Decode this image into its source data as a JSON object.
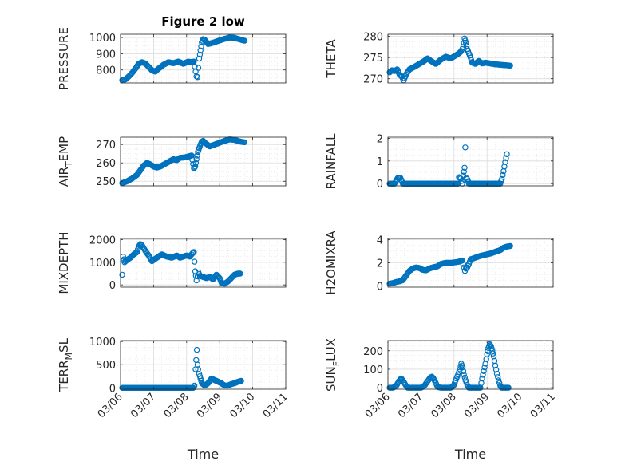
{
  "chart_data": [
    {
      "type": "scatter",
      "title": "Figure 2 low",
      "ylabel": "PRESSURE",
      "ylabel_sub": "",
      "ylabel_tail": "",
      "ylim": [
        720,
        1020
      ],
      "yticks": [
        800,
        900,
        1000
      ],
      "xlim": [
        0,
        5
      ],
      "xticks": [
        0,
        1,
        2,
        3,
        4,
        5
      ],
      "xticklabels": [
        "03/06",
        "03/07",
        "03/08",
        "03/09",
        "03/10",
        "03/11"
      ],
      "xlabel": "",
      "curve": [
        [
          0.05,
          737
        ],
        [
          0.15,
          742
        ],
        [
          0.25,
          760
        ],
        [
          0.35,
          782
        ],
        [
          0.45,
          808
        ],
        [
          0.55,
          838
        ],
        [
          0.65,
          848
        ],
        [
          0.75,
          840
        ],
        [
          0.85,
          820
        ],
        [
          0.95,
          798
        ],
        [
          1.05,
          790
        ],
        [
          1.15,
          808
        ],
        [
          1.3,
          832
        ],
        [
          1.45,
          848
        ],
        [
          1.6,
          842
        ],
        [
          1.75,
          852
        ],
        [
          1.9,
          838
        ],
        [
          2.05,
          852
        ],
        [
          2.15,
          848
        ],
        [
          2.22,
          852
        ],
        [
          2.3,
          760
        ],
        [
          2.33,
          756
        ],
        [
          2.38,
          870
        ],
        [
          2.42,
          920
        ],
        [
          2.46,
          970
        ],
        [
          2.5,
          990
        ],
        [
          2.55,
          985
        ],
        [
          2.65,
          960
        ],
        [
          2.8,
          968
        ],
        [
          3.0,
          982
        ],
        [
          3.15,
          992
        ],
        [
          3.3,
          1000
        ],
        [
          3.45,
          998
        ],
        [
          3.55,
          992
        ],
        [
          3.65,
          986
        ],
        [
          3.75,
          980
        ]
      ]
    },
    {
      "type": "scatter",
      "title": "",
      "ylabel": "THETA",
      "ylabel_sub": "",
      "ylabel_tail": "",
      "ylim": [
        269,
        280.5
      ],
      "yticks": [
        270,
        275,
        280
      ],
      "xlim": [
        0,
        5
      ],
      "xticks": [
        0,
        1,
        2,
        3,
        4,
        5
      ],
      "xticklabels": [
        "03/06",
        "03/07",
        "03/08",
        "03/09",
        "03/10",
        "03/11"
      ],
      "xlabel": "",
      "curve": [
        [
          0.05,
          271.5
        ],
        [
          0.12,
          272
        ],
        [
          0.2,
          271.8
        ],
        [
          0.28,
          272.2
        ],
        [
          0.35,
          271
        ],
        [
          0.42,
          270.5
        ],
        [
          0.48,
          269.6
        ],
        [
          0.55,
          271
        ],
        [
          0.65,
          272.2
        ],
        [
          0.8,
          272.8
        ],
        [
          0.95,
          273.5
        ],
        [
          1.1,
          274.2
        ],
        [
          1.2,
          274.8
        ],
        [
          1.3,
          274.2
        ],
        [
          1.45,
          273.5
        ],
        [
          1.6,
          274.5
        ],
        [
          1.75,
          275.2
        ],
        [
          1.9,
          274.8
        ],
        [
          2.05,
          275.5
        ],
        [
          2.15,
          276
        ],
        [
          2.22,
          276.5
        ],
        [
          2.28,
          277.5
        ],
        [
          2.32,
          279.5
        ],
        [
          2.36,
          278.5
        ],
        [
          2.4,
          277
        ],
        [
          2.45,
          276
        ],
        [
          2.5,
          275
        ],
        [
          2.55,
          273.8
        ],
        [
          2.65,
          273.5
        ],
        [
          2.75,
          274.2
        ],
        [
          2.85,
          273.6
        ],
        [
          2.95,
          273.8
        ],
        [
          3.1,
          273.6
        ],
        [
          3.25,
          273.4
        ],
        [
          3.4,
          273.3
        ],
        [
          3.55,
          273.2
        ],
        [
          3.7,
          273.1
        ]
      ]
    },
    {
      "type": "scatter",
      "title": "",
      "ylabel": "AIR",
      "ylabel_sub": "T",
      "ylabel_tail": "EMP",
      "ylim": [
        247.5,
        274
      ],
      "yticks": [
        250,
        260,
        270
      ],
      "xlim": [
        0,
        5
      ],
      "xticks": [
        0,
        1,
        2,
        3,
        4,
        5
      ],
      "xticklabels": [
        "03/06",
        "03/07",
        "03/08",
        "03/09",
        "03/10",
        "03/11"
      ],
      "xlabel": "",
      "curve": [
        [
          0.05,
          249
        ],
        [
          0.2,
          250
        ],
        [
          0.35,
          251.5
        ],
        [
          0.5,
          253.5
        ],
        [
          0.6,
          256
        ],
        [
          0.7,
          258.5
        ],
        [
          0.8,
          260
        ],
        [
          0.9,
          259.2
        ],
        [
          1.0,
          258
        ],
        [
          1.1,
          257.5
        ],
        [
          1.2,
          258
        ],
        [
          1.35,
          259.5
        ],
        [
          1.5,
          261
        ],
        [
          1.6,
          262
        ],
        [
          1.7,
          261.5
        ],
        [
          1.8,
          262.8
        ],
        [
          1.95,
          263
        ],
        [
          2.05,
          263.5
        ],
        [
          2.15,
          264
        ],
        [
          2.22,
          257
        ],
        [
          2.26,
          258
        ],
        [
          2.3,
          262
        ],
        [
          2.34,
          266
        ],
        [
          2.38,
          268
        ],
        [
          2.42,
          270
        ],
        [
          2.46,
          271.5
        ],
        [
          2.5,
          272
        ],
        [
          2.55,
          271
        ],
        [
          2.7,
          269
        ],
        [
          2.85,
          270
        ],
        [
          3.0,
          271
        ],
        [
          3.15,
          272
        ],
        [
          3.3,
          272.8
        ],
        [
          3.45,
          272.5
        ],
        [
          3.55,
          272
        ],
        [
          3.65,
          271.5
        ],
        [
          3.75,
          271.2
        ]
      ]
    },
    {
      "type": "scatter",
      "title": "",
      "ylabel": "RAINFALL",
      "ylabel_sub": "",
      "ylabel_tail": "",
      "ylim": [
        -0.1,
        2.05
      ],
      "yticks": [
        0,
        1,
        2
      ],
      "xlim": [
        0,
        5
      ],
      "xticks": [
        0,
        1,
        2,
        3,
        4,
        5
      ],
      "xticklabels": [
        "03/06",
        "03/07",
        "03/08",
        "03/09",
        "03/10",
        "03/11"
      ],
      "xlabel": "",
      "curve": [
        [
          0.05,
          0
        ],
        [
          0.2,
          0
        ],
        [
          0.3,
          0.25
        ],
        [
          0.38,
          0.25
        ],
        [
          0.45,
          0
        ],
        [
          0.6,
          0
        ],
        [
          0.8,
          0
        ],
        [
          1.0,
          0
        ],
        [
          1.2,
          0
        ],
        [
          1.4,
          0
        ],
        [
          1.6,
          0
        ],
        [
          1.8,
          0
        ],
        [
          2.0,
          0
        ],
        [
          2.12,
          0
        ],
        [
          2.15,
          0.28
        ],
        [
          2.2,
          0.22
        ],
        [
          2.25,
          0
        ],
        [
          2.28,
          0.35
        ],
        [
          2.32,
          0.7
        ],
        [
          2.34,
          1.6
        ],
        [
          2.37,
          0.25
        ],
        [
          2.4,
          0.2
        ],
        [
          2.45,
          0
        ],
        [
          2.6,
          0
        ],
        [
          2.8,
          0
        ],
        [
          3.0,
          0
        ],
        [
          3.2,
          0
        ],
        [
          3.4,
          0
        ],
        [
          3.45,
          0.2
        ],
        [
          3.5,
          0.55
        ],
        [
          3.55,
          0.95
        ],
        [
          3.6,
          1.3
        ]
      ]
    },
    {
      "type": "scatter",
      "title": "",
      "ylabel": "MIXDEPTH",
      "ylabel_sub": "",
      "ylabel_tail": "",
      "ylim": [
        -100,
        2050
      ],
      "yticks": [
        0,
        1000,
        2000
      ],
      "xlim": [
        0,
        5
      ],
      "xticks": [
        0,
        1,
        2,
        3,
        4,
        5
      ],
      "xticklabels": [
        "03/06",
        "03/07",
        "03/08",
        "03/09",
        "03/10",
        "03/11"
      ],
      "xlabel": "",
      "curve": [
        [
          0.05,
          450
        ],
        [
          0.08,
          1250
        ],
        [
          0.12,
          1000
        ],
        [
          0.2,
          1100
        ],
        [
          0.3,
          1200
        ],
        [
          0.4,
          1350
        ],
        [
          0.5,
          1450
        ],
        [
          0.55,
          1700
        ],
        [
          0.6,
          1800
        ],
        [
          0.65,
          1750
        ],
        [
          0.75,
          1500
        ],
        [
          0.85,
          1300
        ],
        [
          0.95,
          1050
        ],
        [
          1.1,
          1200
        ],
        [
          1.25,
          1350
        ],
        [
          1.4,
          1250
        ],
        [
          1.55,
          1200
        ],
        [
          1.7,
          1300
        ],
        [
          1.8,
          1200
        ],
        [
          1.9,
          1250
        ],
        [
          2.0,
          1300
        ],
        [
          2.1,
          1250
        ],
        [
          2.18,
          1400
        ],
        [
          2.22,
          1450
        ],
        [
          2.26,
          600
        ],
        [
          2.28,
          400
        ],
        [
          2.3,
          200
        ],
        [
          2.36,
          550
        ],
        [
          2.4,
          400
        ],
        [
          2.5,
          350
        ],
        [
          2.6,
          300
        ],
        [
          2.7,
          350
        ],
        [
          2.8,
          250
        ],
        [
          2.9,
          450
        ],
        [
          3.0,
          300
        ],
        [
          3.05,
          100
        ],
        [
          3.15,
          50
        ],
        [
          3.25,
          150
        ],
        [
          3.35,
          300
        ],
        [
          3.45,
          450
        ],
        [
          3.55,
          500
        ],
        [
          3.62,
          500
        ]
      ]
    },
    {
      "type": "scatter",
      "title": "",
      "ylabel": "H2OMIXRA",
      "ylabel_sub": "",
      "ylabel_tail": "",
      "ylim": [
        -0.1,
        4.1
      ],
      "yticks": [
        0,
        2,
        4
      ],
      "xlim": [
        0,
        5
      ],
      "xticks": [
        0,
        1,
        2,
        3,
        4,
        5
      ],
      "xticklabels": [
        "03/06",
        "03/07",
        "03/08",
        "03/09",
        "03/10",
        "03/11"
      ],
      "xlabel": "",
      "curve": [
        [
          0.05,
          0.2
        ],
        [
          0.15,
          0.25
        ],
        [
          0.25,
          0.35
        ],
        [
          0.35,
          0.4
        ],
        [
          0.45,
          0.5
        ],
        [
          0.55,
          0.9
        ],
        [
          0.65,
          1.3
        ],
        [
          0.75,
          1.5
        ],
        [
          0.85,
          1.6
        ],
        [
          0.95,
          1.55
        ],
        [
          1.05,
          1.4
        ],
        [
          1.15,
          1.35
        ],
        [
          1.25,
          1.5
        ],
        [
          1.35,
          1.6
        ],
        [
          1.5,
          1.7
        ],
        [
          1.6,
          1.9
        ],
        [
          1.75,
          2.0
        ],
        [
          1.9,
          2.0
        ],
        [
          2.05,
          2.05
        ],
        [
          2.15,
          2.1
        ],
        [
          2.2,
          2.15
        ],
        [
          2.25,
          2.2
        ],
        [
          2.3,
          1.6
        ],
        [
          2.33,
          1.3
        ],
        [
          2.36,
          1.5
        ],
        [
          2.4,
          1.6
        ],
        [
          2.45,
          1.9
        ],
        [
          2.5,
          2.3
        ],
        [
          2.6,
          2.4
        ],
        [
          2.7,
          2.5
        ],
        [
          2.8,
          2.6
        ],
        [
          2.95,
          2.7
        ],
        [
          3.1,
          2.8
        ],
        [
          3.2,
          2.9
        ],
        [
          3.3,
          3.0
        ],
        [
          3.4,
          3.1
        ],
        [
          3.5,
          3.3
        ],
        [
          3.6,
          3.4
        ],
        [
          3.7,
          3.45
        ]
      ]
    },
    {
      "type": "scatter",
      "title": "",
      "ylabel": "TERR",
      "ylabel_sub": "M",
      "ylabel_tail": "SL",
      "ylim": [
        -30,
        1020
      ],
      "yticks": [
        0,
        500,
        1000
      ],
      "xlim": [
        0,
        5
      ],
      "xticks": [
        0,
        1,
        2,
        3,
        4,
        5
      ],
      "xticklabels": [
        "03/06",
        "03/07",
        "03/08",
        "03/09",
        "03/10",
        "03/11"
      ],
      "xlabel": "Time",
      "curve": [
        [
          0.05,
          0
        ],
        [
          0.3,
          0
        ],
        [
          0.6,
          0
        ],
        [
          0.9,
          0
        ],
        [
          1.2,
          0
        ],
        [
          1.5,
          0
        ],
        [
          1.8,
          0
        ],
        [
          2.1,
          0
        ],
        [
          2.2,
          0
        ],
        [
          2.24,
          50
        ],
        [
          2.27,
          400
        ],
        [
          2.29,
          600
        ],
        [
          2.31,
          820
        ],
        [
          2.33,
          500
        ],
        [
          2.35,
          400
        ],
        [
          2.38,
          300
        ],
        [
          2.42,
          200
        ],
        [
          2.46,
          100
        ],
        [
          2.55,
          50
        ],
        [
          2.65,
          100
        ],
        [
          2.75,
          200
        ],
        [
          2.9,
          150
        ],
        [
          3.05,
          100
        ],
        [
          3.15,
          50
        ],
        [
          3.25,
          50
        ],
        [
          3.35,
          80
        ],
        [
          3.45,
          100
        ],
        [
          3.55,
          130
        ],
        [
          3.65,
          150
        ]
      ]
    },
    {
      "type": "scatter",
      "title": "",
      "ylabel": "SUN",
      "ylabel_sub": "F",
      "ylabel_tail": "LUX",
      "ylim": [
        -8,
        255
      ],
      "yticks": [
        0,
        100,
        200
      ],
      "xlim": [
        0,
        5
      ],
      "xticks": [
        0,
        1,
        2,
        3,
        4,
        5
      ],
      "xticklabels": [
        "03/06",
        "03/07",
        "03/08",
        "03/09",
        "03/10",
        "03/11"
      ],
      "xlabel": "Time",
      "curve": [
        [
          0.05,
          0
        ],
        [
          0.15,
          0
        ],
        [
          0.25,
          10
        ],
        [
          0.3,
          25
        ],
        [
          0.35,
          40
        ],
        [
          0.4,
          50
        ],
        [
          0.45,
          40
        ],
        [
          0.5,
          25
        ],
        [
          0.55,
          10
        ],
        [
          0.6,
          0
        ],
        [
          0.8,
          0
        ],
        [
          1.0,
          0
        ],
        [
          1.1,
          10
        ],
        [
          1.2,
          35
        ],
        [
          1.28,
          55
        ],
        [
          1.33,
          60
        ],
        [
          1.38,
          50
        ],
        [
          1.45,
          25
        ],
        [
          1.5,
          5
        ],
        [
          1.6,
          0
        ],
        [
          1.8,
          0
        ],
        [
          1.9,
          0
        ],
        [
          2.0,
          15
        ],
        [
          2.05,
          40
        ],
        [
          2.12,
          70
        ],
        [
          2.18,
          100
        ],
        [
          2.22,
          130
        ],
        [
          2.26,
          110
        ],
        [
          2.3,
          70
        ],
        [
          2.35,
          40
        ],
        [
          2.4,
          15
        ],
        [
          2.45,
          0
        ],
        [
          2.6,
          0
        ],
        [
          2.7,
          0
        ],
        [
          2.8,
          0
        ],
        [
          2.85,
          50
        ],
        [
          2.9,
          90
        ],
        [
          2.95,
          130
        ],
        [
          3.0,
          180
        ],
        [
          3.04,
          215
        ],
        [
          3.08,
          235
        ],
        [
          3.12,
          225
        ],
        [
          3.16,
          200
        ],
        [
          3.2,
          170
        ],
        [
          3.25,
          120
        ],
        [
          3.3,
          75
        ],
        [
          3.35,
          40
        ],
        [
          3.4,
          10
        ],
        [
          3.45,
          0
        ],
        [
          3.55,
          0
        ],
        [
          3.65,
          0
        ]
      ]
    }
  ]
}
